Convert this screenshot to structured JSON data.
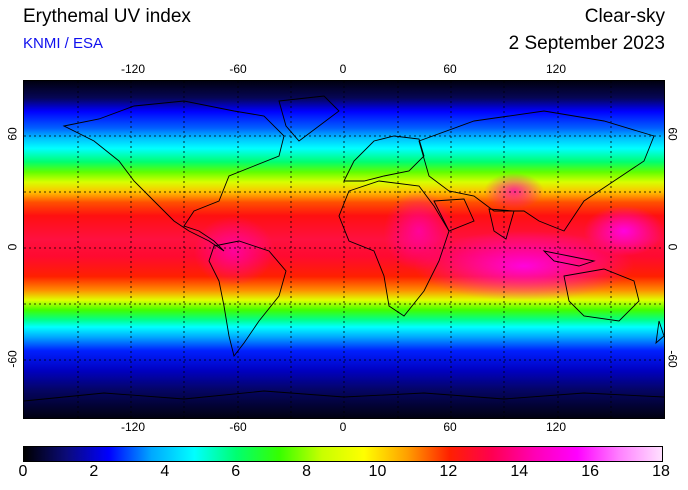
{
  "header": {
    "title": "Erythemal UV index",
    "source": "KNMI / ESA",
    "mode": "Clear-sky",
    "date": "2 September 2023"
  },
  "map": {
    "lon_ticks": [
      "-120",
      "-60",
      "0",
      "60",
      "120"
    ],
    "lat_ticks": [
      "60",
      "0",
      "-60"
    ]
  },
  "colorbar": {
    "min": 0,
    "max": 18,
    "labels": [
      "0",
      "2",
      "4",
      "6",
      "8",
      "10",
      "12",
      "14",
      "16",
      "18"
    ],
    "colors": [
      "#000000",
      "#0b0b7a",
      "#0000ff",
      "#00a8ff",
      "#00ffff",
      "#00ff70",
      "#36ff00",
      "#c8ff00",
      "#ffff00",
      "#ffa000",
      "#ff2000",
      "#ff0050",
      "#ff00b4",
      "#ff00ff",
      "#ff80ff",
      "#ffe0ff"
    ]
  }
}
